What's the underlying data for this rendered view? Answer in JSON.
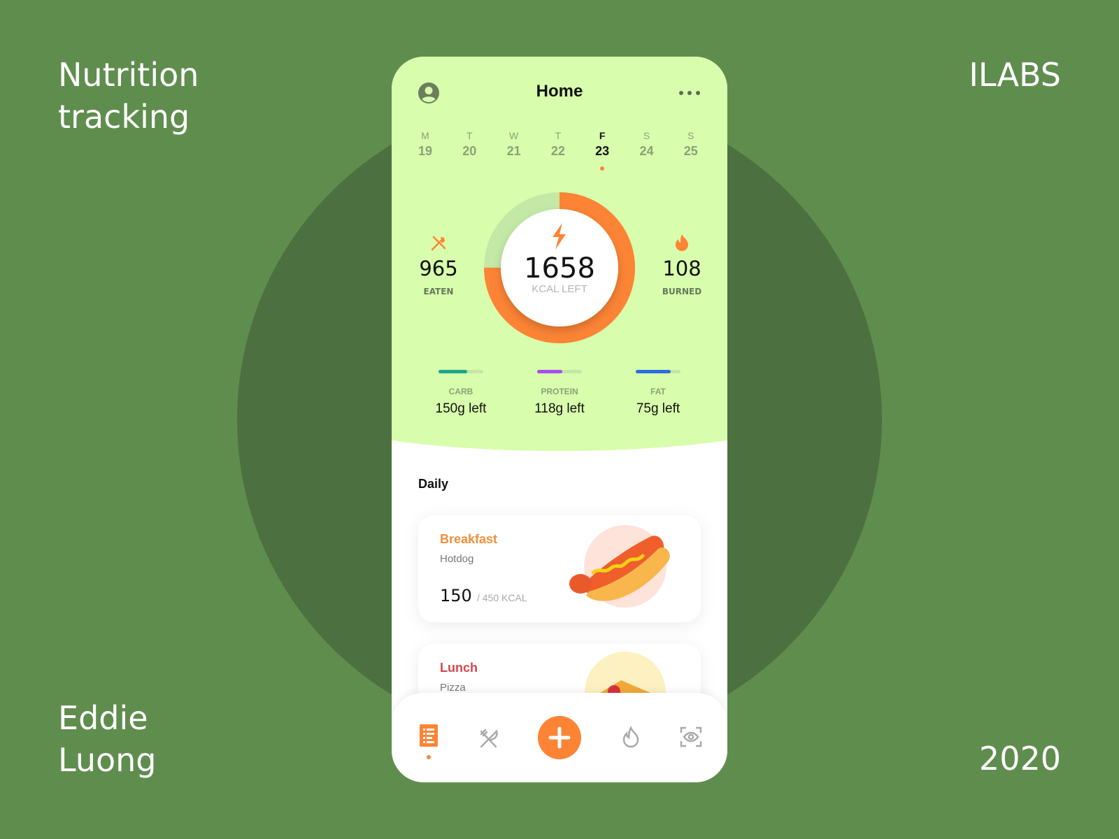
{
  "corners": {
    "top_left": [
      "Nutrition",
      "tracking"
    ],
    "top_right": "ILABS",
    "bottom_left": [
      "Eddie",
      "Luong"
    ],
    "bottom_right": "2020"
  },
  "header": {
    "title": "Home",
    "avatar_icon": "user-circle-icon",
    "more_icon": "more-horizontal-icon"
  },
  "week": [
    {
      "letter": "M",
      "num": "19"
    },
    {
      "letter": "T",
      "num": "20"
    },
    {
      "letter": "W",
      "num": "21"
    },
    {
      "letter": "T",
      "num": "22"
    },
    {
      "letter": "F",
      "num": "23",
      "selected": true
    },
    {
      "letter": "S",
      "num": "24"
    },
    {
      "letter": "S",
      "num": "25"
    }
  ],
  "summary": {
    "eaten": {
      "value": "965",
      "label": "EATEN"
    },
    "burned": {
      "value": "108",
      "label": "BURNED"
    },
    "kcal_left": {
      "value": "1658",
      "label": "KCAL LEFT"
    },
    "ring_progress": 0.75
  },
  "macros": [
    {
      "label": "CARB",
      "value": "150g left",
      "progress": 0.64,
      "color": "#1fa58a"
    },
    {
      "label": "PROTEIN",
      "value": "118g left",
      "progress": 0.56,
      "color": "#a84ef0"
    },
    {
      "label": "FAT",
      "value": "75g left",
      "progress": 0.78,
      "color": "#2a6fe0"
    }
  ],
  "daily": {
    "title": "Daily",
    "meals": [
      {
        "name": "Breakfast",
        "food": "Hotdog",
        "kcal": "150",
        "target": "/ 450 KCAL",
        "color": "#f58f3c"
      },
      {
        "name": "Lunch",
        "food": "Pizza",
        "color": "#d9454a"
      }
    ]
  },
  "nav": {
    "items": [
      "diary-icon",
      "meals-icon",
      "add-icon",
      "burn-icon",
      "scan-icon"
    ],
    "active": 0
  },
  "colors": {
    "accent": "#fd8435",
    "background": "#5f8d4e",
    "header": "#d8fdac"
  }
}
